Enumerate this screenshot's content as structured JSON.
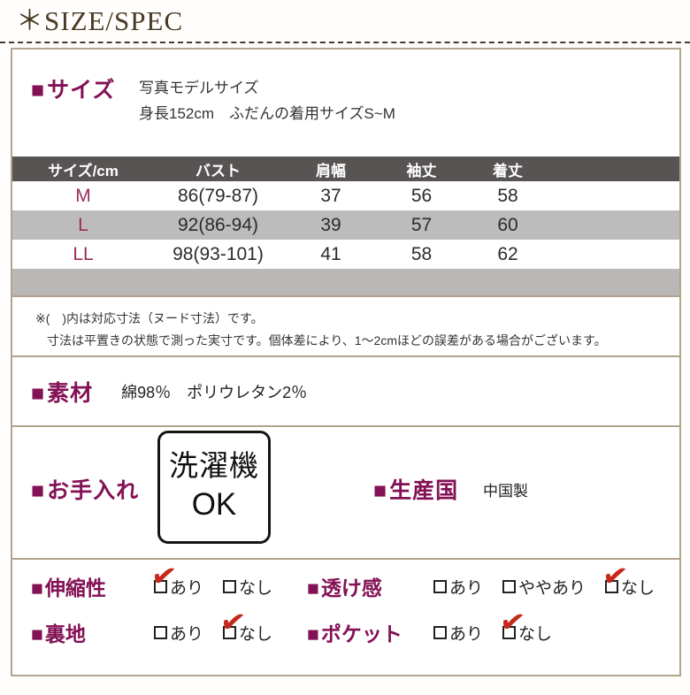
{
  "header": {
    "title": "＊SIZE/SPEC"
  },
  "icons": {
    "checkmark": "✔"
  },
  "colors": {
    "accent": "#831155",
    "check": "#c4291c",
    "title": "#493a26",
    "line": "#b3a28d",
    "tableHeader": "#575453",
    "rowAlt": "#bdbcbc",
    "band": "#b9b8b7",
    "sizeText": "#9b2c5e"
  },
  "size_section": {
    "bullet": "■",
    "label": "サイズ",
    "model_line1": "写真モデルサイズ",
    "model_line2": "身長152cm　ふだんの着用サイズS~M"
  },
  "size_table": {
    "headers": [
      "サイズ/cm",
      "バスト",
      "肩幅",
      "袖丈",
      "着丈"
    ],
    "rows": [
      [
        "M",
        "86(79-87)",
        "37",
        "56",
        "58"
      ],
      [
        "L",
        "92(86-94)",
        "39",
        "57",
        "60"
      ],
      [
        "LL",
        "98(93-101)",
        "41",
        "58",
        "62"
      ]
    ]
  },
  "notes": {
    "line1": "※(　)内は対応寸法（ヌード寸法）です。",
    "line2": "寸法は平置きの状態で測った実寸です。個体差により、1～2cmほどの誤差がある場合がございます。"
  },
  "material": {
    "bullet": "■",
    "label": "素材",
    "value": "綿98％　ポリウレタン2％"
  },
  "care": {
    "bullet": "■",
    "label": "お手入れ",
    "badge_line1": "洗濯機",
    "badge_line2": "OK"
  },
  "origin": {
    "bullet": "■",
    "label": "生産国",
    "value": "中国製"
  },
  "attributes": {
    "stretch": {
      "bullet": "■",
      "label": "伸縮性",
      "options": [
        {
          "text": "あり",
          "checked": true
        },
        {
          "text": "なし",
          "checked": false
        }
      ]
    },
    "sheer": {
      "bullet": "■",
      "label": "透け感",
      "options": [
        {
          "text": "あり",
          "checked": false
        },
        {
          "text": "ややあり",
          "checked": false
        },
        {
          "text": "なし",
          "checked": true
        }
      ]
    },
    "lining": {
      "bullet": "■",
      "label": "裏地",
      "options": [
        {
          "text": "あり",
          "checked": false
        },
        {
          "text": "なし",
          "checked": true
        }
      ]
    },
    "pocket": {
      "bullet": "■",
      "label": "ポケット",
      "options": [
        {
          "text": "あり",
          "checked": false
        },
        {
          "text": "なし",
          "checked": true
        }
      ]
    }
  }
}
